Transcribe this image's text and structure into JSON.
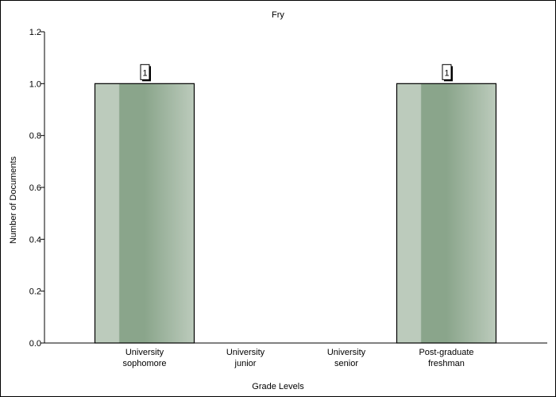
{
  "chart_data": {
    "type": "bar",
    "title": "Fry",
    "xlabel": "Grade Levels",
    "ylabel": "Number of Documents",
    "categories": [
      [
        "University",
        "sophomore"
      ],
      [
        "University",
        "junior"
      ],
      [
        "University",
        "senior"
      ],
      [
        "Post-graduate",
        "freshman"
      ]
    ],
    "values": [
      1,
      0,
      0,
      1
    ],
    "data_labels": [
      "1",
      "",
      "",
      "1"
    ],
    "ylim": [
      0,
      1.2
    ],
    "yticks": [
      "0.0",
      "0.2",
      "0.4",
      "0.6",
      "0.8",
      "1.0",
      "1.2"
    ],
    "grid": false,
    "legend": "none",
    "colors": {
      "bar_dark": "#8aa58b",
      "bar_light": "#bccbbc",
      "bar_edge": "#000000"
    }
  }
}
